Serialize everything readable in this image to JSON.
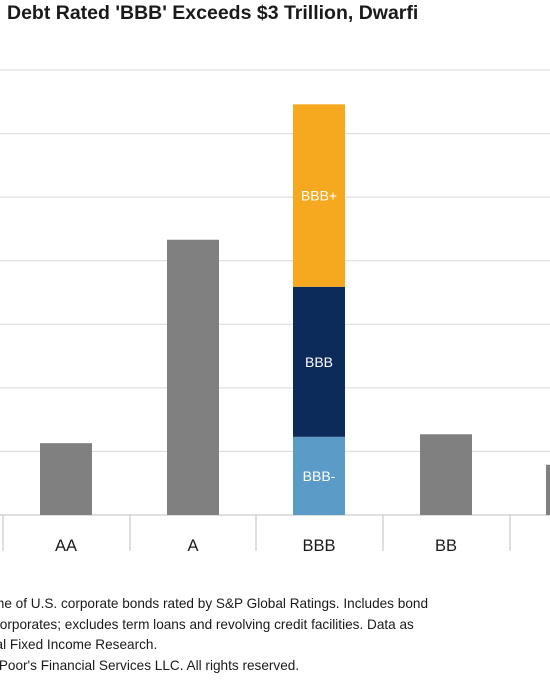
{
  "title": "Debt Rated 'BBB' Exceeds $3 Trillion, Dwarfi",
  "chart_data": {
    "type": "bar",
    "title": "Debt Rated 'BBB' Exceeds $3 Trillion, Dwarfi",
    "xlabel": "",
    "ylabel": "",
    "categories": [
      "AA",
      "A",
      "BBB",
      "BB"
    ],
    "values": [
      1.13,
      4.33,
      6.46,
      1.27
    ],
    "stacked": {
      "category": "BBB",
      "segments": [
        {
          "name": "BBB-",
          "value": 1.23
        },
        {
          "name": "BBB",
          "value": 2.36
        },
        {
          "name": "BBB+",
          "value": 2.87
        }
      ]
    },
    "partial_bar_value": 0.79,
    "ylim": [
      0,
      7
    ],
    "grid": true,
    "colors": {
      "gray": "#808080",
      "bbb_minus": "#5b9bc7",
      "bbb": "#0c2a5a",
      "bbb_plus": "#f6a81e",
      "grid": "#d9d9d9",
      "segment_label": "#ffffff"
    }
  },
  "notes": [
    "me of U.S. corporate bonds rated by S&P Global Ratings. Includes bond",
    "corporates; excludes term loans and revolving credit facilities. Data as",
    "bal Fixed Income Research.",
    "& Poor's Financial Services LLC. All rights reserved."
  ]
}
